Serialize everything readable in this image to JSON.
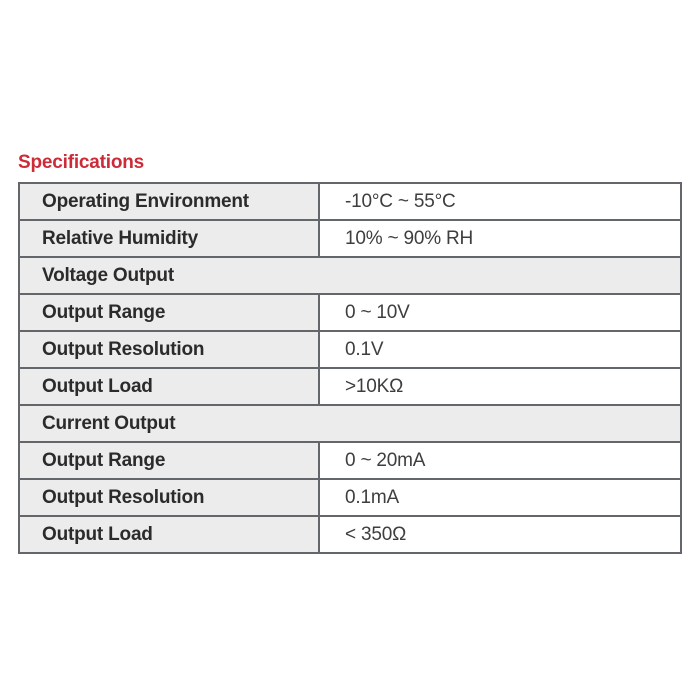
{
  "page": {
    "title": "Specifications"
  },
  "colors": {
    "title-red": "#cd2b38",
    "cell-gray": "#ececec",
    "border-gray": "#63676b",
    "label-text": "#2b2b2b",
    "value-text": "#3e3e3e",
    "page-bg": "#ffffff"
  },
  "table": {
    "rows": [
      {
        "type": "data",
        "label": "Operating Environment",
        "value": "-10°C ~ 55°C"
      },
      {
        "type": "data",
        "label": "Relative Humidity",
        "value": "10% ~ 90% RH"
      },
      {
        "type": "section",
        "label": "Voltage Output"
      },
      {
        "type": "data",
        "label": "Output Range",
        "value": "0 ~ 10V"
      },
      {
        "type": "data",
        "label": "Output Resolution",
        "value": "0.1V"
      },
      {
        "type": "data",
        "label": "Output Load",
        "value": ">10KΩ"
      },
      {
        "type": "section",
        "label": "Current Output"
      },
      {
        "type": "data",
        "label": "Output Range",
        "value": "0 ~ 20mA"
      },
      {
        "type": "data",
        "label": "Output Resolution",
        "value": "0.1mA"
      },
      {
        "type": "data",
        "label": "Output Load",
        "value": "< 350Ω"
      }
    ]
  }
}
